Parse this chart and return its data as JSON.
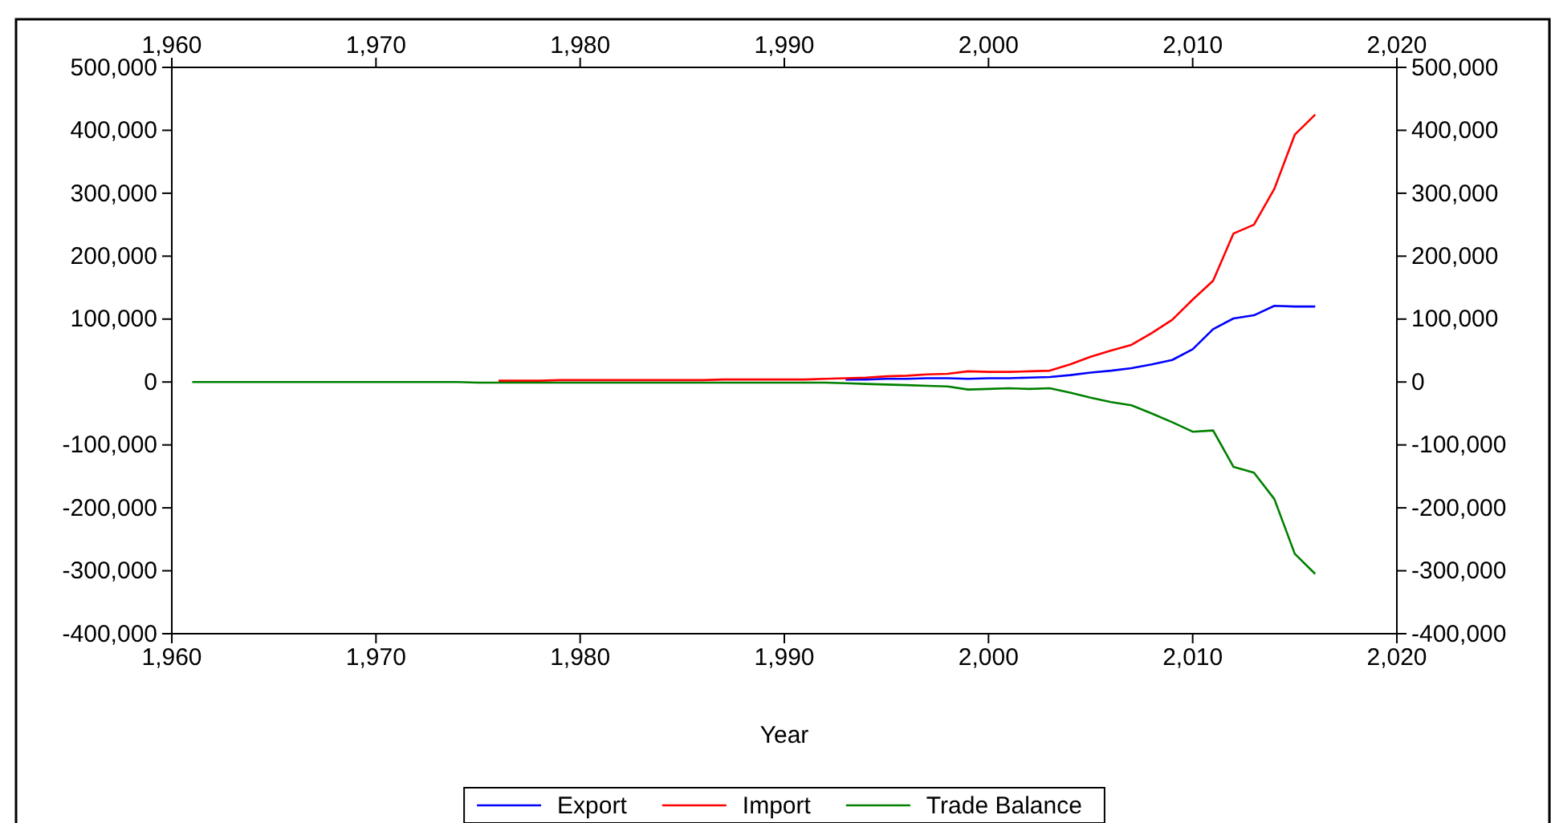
{
  "chart_data": {
    "type": "line",
    "xlabel": "Year",
    "x": [
      1961,
      1962,
      1963,
      1964,
      1965,
      1966,
      1967,
      1968,
      1969,
      1970,
      1971,
      1972,
      1973,
      1974,
      1975,
      1976,
      1977,
      1978,
      1979,
      1980,
      1981,
      1982,
      1983,
      1984,
      1985,
      1986,
      1987,
      1988,
      1989,
      1990,
      1991,
      1992,
      1993,
      1994,
      1995,
      1996,
      1997,
      1998,
      1999,
      2000,
      2001,
      2002,
      2003,
      2004,
      2005,
      2006,
      2007,
      2008,
      2009,
      2010,
      2011,
      2012,
      2013,
      2014,
      2015,
      2016
    ],
    "series": [
      {
        "name": "Export",
        "color": "#0000ff",
        "values": [
          null,
          null,
          null,
          null,
          null,
          null,
          null,
          null,
          null,
          null,
          null,
          null,
          null,
          null,
          null,
          null,
          null,
          null,
          null,
          null,
          null,
          null,
          null,
          null,
          null,
          null,
          null,
          null,
          null,
          null,
          null,
          null,
          4000,
          4000,
          5000,
          5000,
          6000,
          6000,
          5000,
          6000,
          6000,
          7000,
          8000,
          11000,
          15000,
          18000,
          22000,
          28000,
          35000,
          52000,
          84000,
          101000,
          106000,
          121000,
          120000,
          120000
        ]
      },
      {
        "name": "Import",
        "color": "#ff0000",
        "values": [
          null,
          null,
          null,
          null,
          null,
          null,
          null,
          null,
          null,
          null,
          null,
          null,
          null,
          null,
          null,
          2000,
          2000,
          2000,
          3000,
          3000,
          3000,
          3000,
          3000,
          3000,
          3000,
          3000,
          4000,
          4000,
          4000,
          4000,
          4000,
          5000,
          6000,
          7000,
          9000,
          10000,
          12000,
          13000,
          17000,
          16000,
          16000,
          17000,
          18000,
          28000,
          40000,
          50000,
          59000,
          78000,
          99000,
          131000,
          161000,
          236000,
          250000,
          307000,
          393000,
          425000
        ]
      },
      {
        "name": "Trade Balance",
        "color": "#008000",
        "values": [
          0,
          0,
          0,
          0,
          0,
          0,
          0,
          0,
          0,
          0,
          0,
          0,
          0,
          0,
          -1000,
          -1000,
          -1000,
          -1000,
          -1000,
          -1000,
          -1000,
          -1000,
          -1000,
          -1000,
          -1000,
          -1000,
          -1000,
          -1000,
          -1000,
          -1000,
          -1000,
          -1000,
          -2000,
          -3000,
          -4000,
          -5000,
          -6000,
          -7000,
          -12000,
          -11000,
          -10000,
          -11000,
          -10000,
          -17000,
          -25000,
          -32000,
          -37000,
          -50000,
          -64000,
          -79000,
          -77000,
          -135000,
          -144000,
          -186000,
          -273000,
          -305000
        ]
      }
    ],
    "xlim": [
      1960,
      2020
    ],
    "xticks": [
      {
        "value": 1960,
        "label": "1,960"
      },
      {
        "value": 1970,
        "label": "1,970"
      },
      {
        "value": 1980,
        "label": "1,980"
      },
      {
        "value": 1990,
        "label": "1,990"
      },
      {
        "value": 2000,
        "label": "2,000"
      },
      {
        "value": 2010,
        "label": "2,010"
      },
      {
        "value": 2020,
        "label": "2,020"
      }
    ],
    "x2lim": [
      1960,
      2020
    ],
    "x2ticks": [
      {
        "value": 1960,
        "label": "1,960"
      },
      {
        "value": 1970,
        "label": "1,970"
      },
      {
        "value": 1980,
        "label": "1,980"
      },
      {
        "value": 1990,
        "label": "1,990"
      },
      {
        "value": 2000,
        "label": "2,000"
      },
      {
        "value": 2010,
        "label": "2,010"
      },
      {
        "value": 2020,
        "label": "2,020"
      }
    ],
    "ylim": [
      -400000,
      500000
    ],
    "yticks": [
      {
        "value": -400000,
        "label": "-400,000"
      },
      {
        "value": -300000,
        "label": "-300,000"
      },
      {
        "value": -200000,
        "label": "-200,000"
      },
      {
        "value": -100000,
        "label": "-100,000"
      },
      0,
      {
        "value": 100000,
        "label": "100,000"
      },
      {
        "value": 200000,
        "label": "200,000"
      },
      {
        "value": 300000,
        "label": "300,000"
      },
      {
        "value": 400000,
        "label": "400,000"
      },
      {
        "value": 500000,
        "label": "500,000"
      }
    ],
    "y2lim": [
      -400000,
      500000
    ],
    "y2ticks": [
      {
        "value": -400000,
        "label": "-400,000"
      },
      {
        "value": -300000,
        "label": "-300,000"
      },
      {
        "value": -200000,
        "label": "-200,000"
      },
      {
        "value": -100000,
        "label": "-100,000"
      },
      0,
      {
        "value": 100000,
        "label": "100,000"
      },
      {
        "value": 200000,
        "label": "200,000"
      },
      {
        "value": 300000,
        "label": "300,000"
      },
      {
        "value": 400000,
        "label": "400,000"
      },
      {
        "value": 500000,
        "label": "500,000"
      }
    ],
    "legend": "bottom",
    "grid": false,
    "line_style": "solid",
    "marker": "none"
  }
}
